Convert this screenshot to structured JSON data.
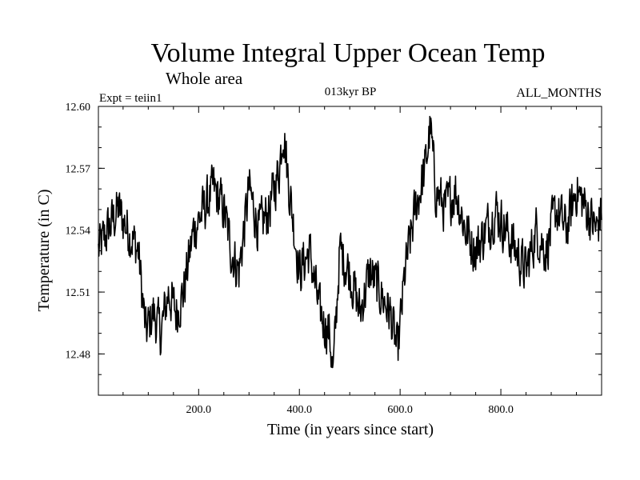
{
  "chart_data": {
    "type": "line",
    "title": "Volume Integral Upper Ocean Temp",
    "subtitle": "Whole area",
    "experiment_label": "Expt = teiin1",
    "period_label": "013kyr BP",
    "months_label": "ALL_MONTHS",
    "xlabel": "Time (in years since start)",
    "ylabel": "Temperature (in C)",
    "xlim": [
      1,
      1000
    ],
    "ylim": [
      12.46,
      12.6
    ],
    "x_ticks": [
      200,
      400,
      600,
      800
    ],
    "x_tick_labels": [
      "200.0",
      "400.0",
      "600.0",
      "800.0"
    ],
    "y_ticks": [
      12.48,
      12.51,
      12.54,
      12.57,
      12.6
    ],
    "y_tick_labels": [
      "12.48",
      "12.51",
      "12.54",
      "12.57",
      "12.60"
    ],
    "grid": false,
    "line_color": "#000000",
    "series": [
      {
        "x": [
          1,
          20,
          40,
          60,
          80,
          95,
          110,
          125,
          140,
          155,
          170,
          190,
          210,
          230,
          250,
          265,
          280,
          300,
          320,
          340,
          360,
          368,
          380,
          400,
          420,
          440,
          460,
          467,
          480,
          500,
          520,
          540,
          560,
          580,
          595,
          610,
          630,
          650,
          660,
          670,
          690,
          710,
          730,
          750,
          770,
          790,
          810,
          830,
          850,
          870,
          890,
          910,
          930,
          950,
          970,
          990,
          1000
        ],
        "y": [
          12.53,
          12.54,
          12.55,
          12.54,
          12.53,
          12.49,
          12.5,
          12.49,
          12.51,
          12.5,
          12.51,
          12.54,
          12.55,
          12.56,
          12.55,
          12.53,
          12.52,
          12.56,
          12.54,
          12.55,
          12.57,
          12.59,
          12.56,
          12.52,
          12.53,
          12.5,
          12.49,
          12.47,
          12.53,
          12.52,
          12.5,
          12.52,
          12.51,
          12.5,
          12.48,
          12.52,
          12.55,
          12.57,
          12.59,
          12.56,
          12.55,
          12.56,
          12.54,
          12.53,
          12.54,
          12.55,
          12.54,
          12.53,
          12.52,
          12.54,
          12.53,
          12.55,
          12.54,
          12.56,
          12.55,
          12.54,
          12.55
        ]
      }
    ]
  }
}
